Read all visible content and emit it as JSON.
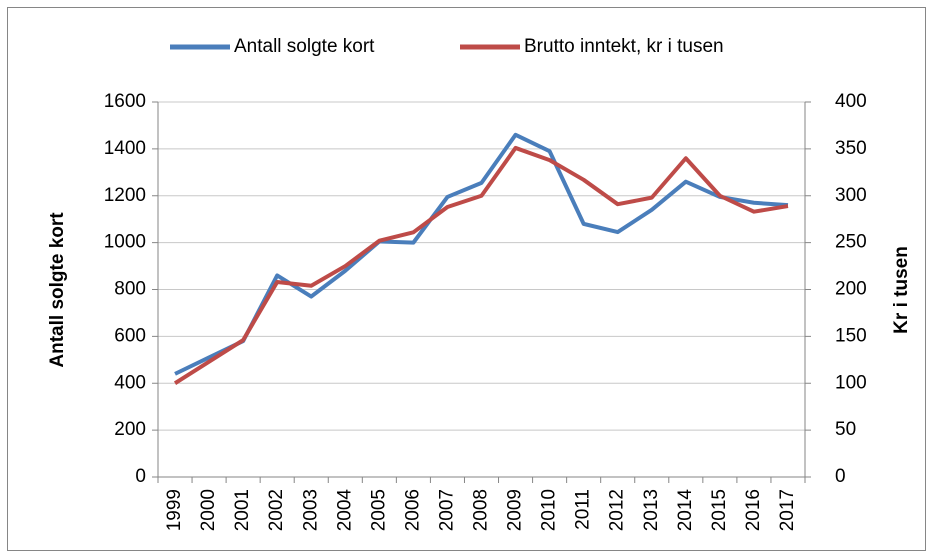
{
  "chart_data": {
    "type": "line",
    "categories": [
      "1999",
      "2000",
      "2001",
      "2002",
      "2003",
      "2004",
      "2005",
      "2006",
      "2007",
      "2008",
      "2009",
      "2010",
      "2011",
      "2012",
      "2013",
      "2014",
      "2015",
      "2016",
      "2017"
    ],
    "series": [
      {
        "name": "Antall solgte kort",
        "color": "#4a7ebb",
        "axis": "y",
        "values": [
          440,
          510,
          580,
          860,
          770,
          880,
          1005,
          1000,
          1195,
          1255,
          1460,
          1390,
          1080,
          1045,
          1140,
          1260,
          1195,
          1170,
          1160
        ]
      },
      {
        "name": "Brutto inntekt, kr i tusen",
        "color": "#be4b48",
        "axis": "y2",
        "values": [
          100,
          123,
          146,
          208,
          204,
          225,
          252,
          261,
          288,
          300,
          351,
          338,
          317,
          291,
          298,
          340,
          300,
          283,
          289
        ]
      }
    ],
    "ylabel": "Antall solgte kort",
    "y2label": "Kr i tusen",
    "ylim": [
      0,
      1600
    ],
    "yticks": [
      0,
      200,
      400,
      600,
      800,
      1000,
      1200,
      1400,
      1600
    ],
    "y2lim": [
      0,
      400
    ],
    "y2ticks": [
      0,
      50,
      100,
      150,
      200,
      250,
      300,
      350,
      400
    ],
    "grid": true,
    "legend": "top"
  }
}
